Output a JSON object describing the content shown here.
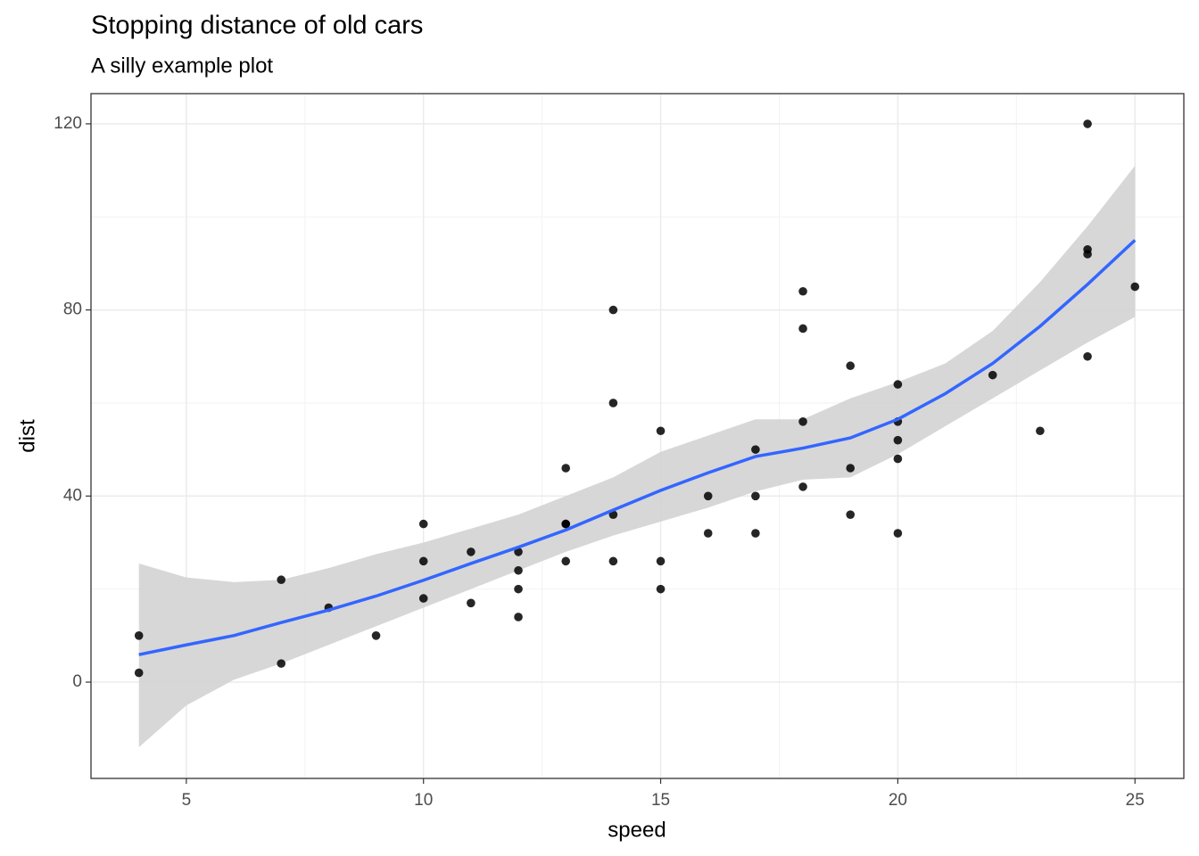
{
  "chart_data": {
    "type": "scatter",
    "title": "Stopping distance of old cars",
    "subtitle": "A silly example plot",
    "x_label": "speed",
    "y_label": "dist",
    "xlim": [
      2.99,
      26.03
    ],
    "ylim": [
      -20.7,
      126.5
    ],
    "xticks": [
      5,
      10,
      15,
      20,
      25
    ],
    "yticks": [
      0,
      40,
      80,
      120
    ],
    "x_minor_grid": [
      7.5,
      12.5,
      17.5,
      22.5
    ],
    "y_minor_grid": [
      20,
      60,
      100
    ],
    "grid": true,
    "points": {
      "color": "#000000",
      "x": [
        4,
        4,
        7,
        7,
        8,
        9,
        10,
        10,
        10,
        11,
        11,
        12,
        12,
        12,
        12,
        13,
        13,
        13,
        13,
        14,
        14,
        14,
        14,
        15,
        15,
        15,
        16,
        16,
        17,
        17,
        17,
        18,
        18,
        18,
        18,
        19,
        19,
        19,
        20,
        20,
        20,
        20,
        20,
        22,
        23,
        24,
        24,
        24,
        24,
        25
      ],
      "values": [
        2,
        10,
        4,
        22,
        16,
        10,
        18,
        26,
        34,
        17,
        28,
        14,
        20,
        24,
        28,
        26,
        34,
        34,
        46,
        26,
        36,
        60,
        80,
        20,
        26,
        54,
        32,
        40,
        32,
        40,
        50,
        42,
        56,
        76,
        84,
        36,
        46,
        68,
        32,
        48,
        52,
        56,
        64,
        66,
        54,
        70,
        92,
        93,
        120,
        85
      ]
    },
    "smooth": {
      "color": "#3366ff",
      "band_color": "#d3d3d3",
      "x": [
        4,
        5,
        6,
        7,
        8,
        9,
        10,
        11,
        12,
        13,
        14,
        15,
        16,
        17,
        18,
        19,
        20,
        21,
        22,
        23,
        24,
        25
      ],
      "values": [
        5.9,
        8,
        10,
        12.8,
        15.5,
        18.5,
        21.9,
        25.5,
        29,
        32.7,
        37,
        41.2,
        45,
        48.5,
        50.3,
        52.5,
        56.5,
        62,
        68.5,
        76.5,
        85.5,
        95
      ],
      "lower": [
        -14,
        -5,
        0.5,
        4,
        8,
        12,
        16,
        20,
        24,
        28,
        31.5,
        34.5,
        37.5,
        41,
        43.5,
        44,
        49,
        55,
        61,
        67,
        73,
        78.5
      ],
      "upper": [
        25.5,
        22.5,
        21.5,
        22,
        24.5,
        27.5,
        30,
        33,
        36,
        40,
        44,
        49.5,
        53,
        56.5,
        56.5,
        61,
        64.5,
        68.5,
        75.5,
        86,
        98,
        111
      ]
    }
  }
}
